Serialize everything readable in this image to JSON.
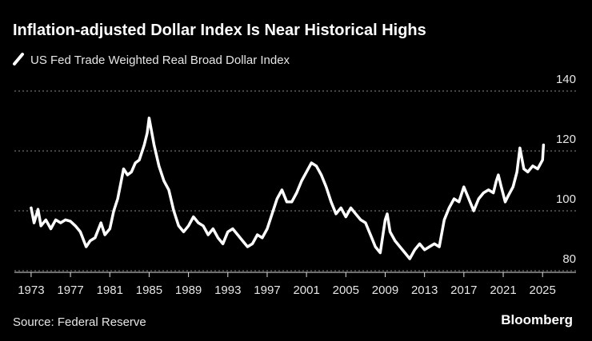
{
  "chart_data": {
    "type": "line",
    "title": "Inflation-adjusted Dollar Index Is Near Historical Highs",
    "source": "Source: Federal Reserve",
    "brand": "Bloomberg",
    "x": [
      1973.0,
      1973.3,
      1973.7,
      1974.0,
      1974.5,
      1975.0,
      1975.5,
      1976.0,
      1976.5,
      1977.0,
      1977.5,
      1978.0,
      1978.6,
      1979.0,
      1979.5,
      1980.1,
      1980.5,
      1981.0,
      1981.4,
      1981.8,
      1982.4,
      1982.8,
      1983.2,
      1983.6,
      1984.0,
      1984.5,
      1984.8,
      1985.0,
      1985.5,
      1986.0,
      1986.5,
      1987.0,
      1987.5,
      1988.0,
      1988.5,
      1989.0,
      1989.5,
      1990.0,
      1990.5,
      1991.0,
      1991.5,
      1992.0,
      1992.5,
      1993.0,
      1993.5,
      1994.0,
      1994.5,
      1995.0,
      1995.5,
      1996.0,
      1996.5,
      1997.0,
      1997.5,
      1998.0,
      1998.5,
      1999.0,
      1999.5,
      2000.0,
      2000.5,
      2001.0,
      2001.5,
      2002.0,
      2002.5,
      2003.0,
      2003.5,
      2004.0,
      2004.5,
      2005.0,
      2005.5,
      2006.0,
      2006.5,
      2007.0,
      2007.5,
      2008.0,
      2008.5,
      2009.0,
      2009.2,
      2009.5,
      2010.0,
      2010.5,
      2011.0,
      2011.5,
      2012.0,
      2012.5,
      2013.0,
      2013.5,
      2014.0,
      2014.5,
      2015.0,
      2015.5,
      2016.0,
      2016.5,
      2017.0,
      2017.5,
      2018.0,
      2018.5,
      2019.0,
      2019.5,
      2020.0,
      2020.3,
      2020.5,
      2020.8,
      2021.2,
      2021.5,
      2022.0,
      2022.4,
      2022.7,
      2023.1,
      2023.5,
      2024.0,
      2024.5,
      2025.0,
      2025.1
    ],
    "series": [
      {
        "name": "US Fed Trade Weighted Real Broad Dollar Index",
        "color": "#ffffff",
        "values": [
          101,
          96,
          100.5,
          95,
          97,
          94,
          97,
          96,
          97,
          96.5,
          95,
          93,
          88,
          90,
          91,
          96,
          92,
          94,
          100,
          104,
          114,
          112,
          113,
          116,
          117,
          122,
          126,
          131,
          122,
          115,
          110,
          107,
          100,
          95,
          93,
          95,
          98,
          96,
          95,
          92,
          94,
          91,
          89,
          93,
          94,
          92,
          90,
          88,
          89,
          92,
          91,
          94,
          99,
          104,
          107,
          103,
          103,
          106,
          110,
          113,
          116,
          115,
          112,
          108,
          103,
          99,
          101,
          98,
          101,
          99,
          97,
          96,
          92,
          88,
          86,
          97,
          99,
          93,
          90,
          88,
          86,
          84,
          87,
          89,
          87,
          88,
          89,
          88,
          97,
          101,
          104,
          103,
          108,
          104,
          100,
          104,
          106,
          107,
          106,
          110,
          112,
          108,
          103,
          105,
          108,
          113,
          121,
          114,
          113,
          115,
          114,
          117,
          122
        ]
      }
    ],
    "xlim": [
      1971.3,
      2028.4
    ],
    "xticks": [
      1973,
      1977,
      1981,
      1985,
      1989,
      1993,
      1997,
      2001,
      2005,
      2009,
      2013,
      2017,
      2021,
      2025
    ],
    "ylim": [
      80,
      140
    ],
    "yticks": [
      80,
      100,
      120,
      140
    ],
    "grid": true
  }
}
